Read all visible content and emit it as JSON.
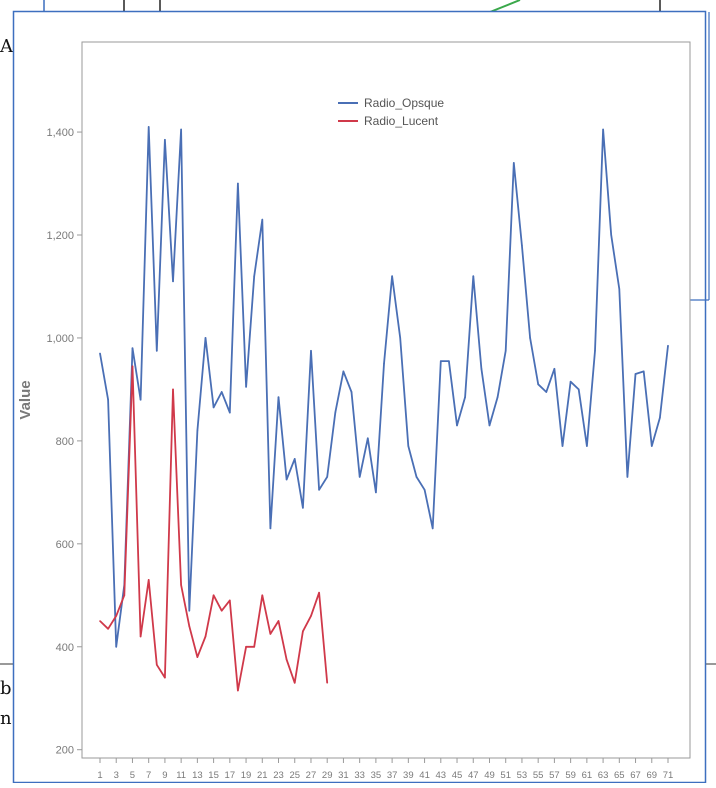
{
  "background": {
    "fragments": [
      {
        "id": "frag-a",
        "text": "A"
      },
      {
        "id": "frag-b",
        "text": "b"
      },
      {
        "id": "frag-n",
        "text": "n"
      }
    ]
  },
  "colors": {
    "opaque": "#4a6fb5",
    "lucent": "#d0394a",
    "frame": "#3d6fbf",
    "axis": "#9a9a9a",
    "text": "#7a7a7a",
    "underlay_green": "#3aa84a"
  },
  "chart_data": {
    "type": "line",
    "title": "",
    "xlabel": "",
    "ylabel": "Value",
    "ylim": [
      180,
      1540
    ],
    "yticks": [
      200,
      400,
      600,
      800,
      1000,
      1200,
      1400
    ],
    "ytick_labels": [
      "200",
      "400",
      "600",
      "800",
      "1,000",
      "1,200",
      "1,400"
    ],
    "xlim": [
      0.5,
      72.5
    ],
    "xticks": [
      1,
      3,
      5,
      7,
      9,
      11,
      13,
      15,
      17,
      19,
      21,
      23,
      25,
      27,
      29,
      31,
      33,
      35,
      37,
      39,
      41,
      43,
      45,
      47,
      49,
      51,
      53,
      55,
      57,
      59,
      61,
      63,
      65,
      67,
      69,
      71
    ],
    "xtick_labels": [
      "1",
      "3",
      "5",
      "7",
      "9",
      "11",
      "13",
      "15",
      "17",
      "19",
      "21",
      "23",
      "25",
      "27",
      "29",
      "31",
      "33",
      "35",
      "37",
      "39",
      "41",
      "43",
      "45",
      "47",
      "49",
      "51",
      "53",
      "55",
      "57",
      "59",
      "61",
      "63",
      "65",
      "67",
      "69",
      "71"
    ],
    "legend": {
      "position": "top-center"
    },
    "grid": false,
    "series": [
      {
        "name": "Radio_Opsque",
        "color": "#4a6fb5",
        "x": [
          1,
          2,
          3,
          4,
          5,
          6,
          7,
          8,
          9,
          10,
          11,
          12,
          13,
          14,
          15,
          16,
          17,
          18,
          19,
          20,
          21,
          22,
          23,
          24,
          25,
          26,
          27,
          28,
          29,
          30,
          31,
          32,
          33,
          34,
          35,
          36,
          37,
          38,
          39,
          40,
          41,
          42,
          43,
          44,
          45,
          46,
          47,
          48,
          49,
          50,
          51,
          52,
          53,
          54,
          55,
          56,
          57,
          58,
          59,
          60,
          61,
          62,
          63,
          64,
          65,
          66,
          67,
          68,
          69,
          70,
          71
        ],
        "values": [
          970,
          880,
          400,
          520,
          980,
          880,
          1410,
          975,
          1385,
          1110,
          1405,
          470,
          820,
          1000,
          865,
          895,
          855,
          1300,
          905,
          1120,
          1230,
          630,
          885,
          725,
          765,
          670,
          975,
          705,
          730,
          855,
          935,
          895,
          730,
          805,
          700,
          950,
          1120,
          1000,
          790,
          730,
          705,
          630,
          955,
          955,
          830,
          885,
          1120,
          940,
          830,
          885,
          975,
          1340,
          1180,
          1000,
          910,
          895,
          940,
          790,
          915,
          900,
          790,
          975,
          1405,
          1200,
          1095,
          730,
          930,
          935,
          790,
          845,
          985
        ]
      },
      {
        "name": "Radio_Lucent",
        "color": "#d0394a",
        "x": [
          1,
          2,
          3,
          4,
          5,
          6,
          7,
          8,
          9,
          10,
          11,
          12,
          13,
          14,
          15,
          16,
          17,
          18,
          19,
          20,
          21,
          22,
          23,
          24,
          25,
          26,
          27,
          28,
          29
        ],
        "values": [
          450,
          435,
          460,
          500,
          945,
          420,
          530,
          365,
          340,
          900,
          520,
          440,
          380,
          420,
          500,
          470,
          490,
          315,
          400,
          400,
          500,
          425,
          450,
          375,
          330,
          430,
          460,
          505,
          330
        ]
      }
    ]
  }
}
